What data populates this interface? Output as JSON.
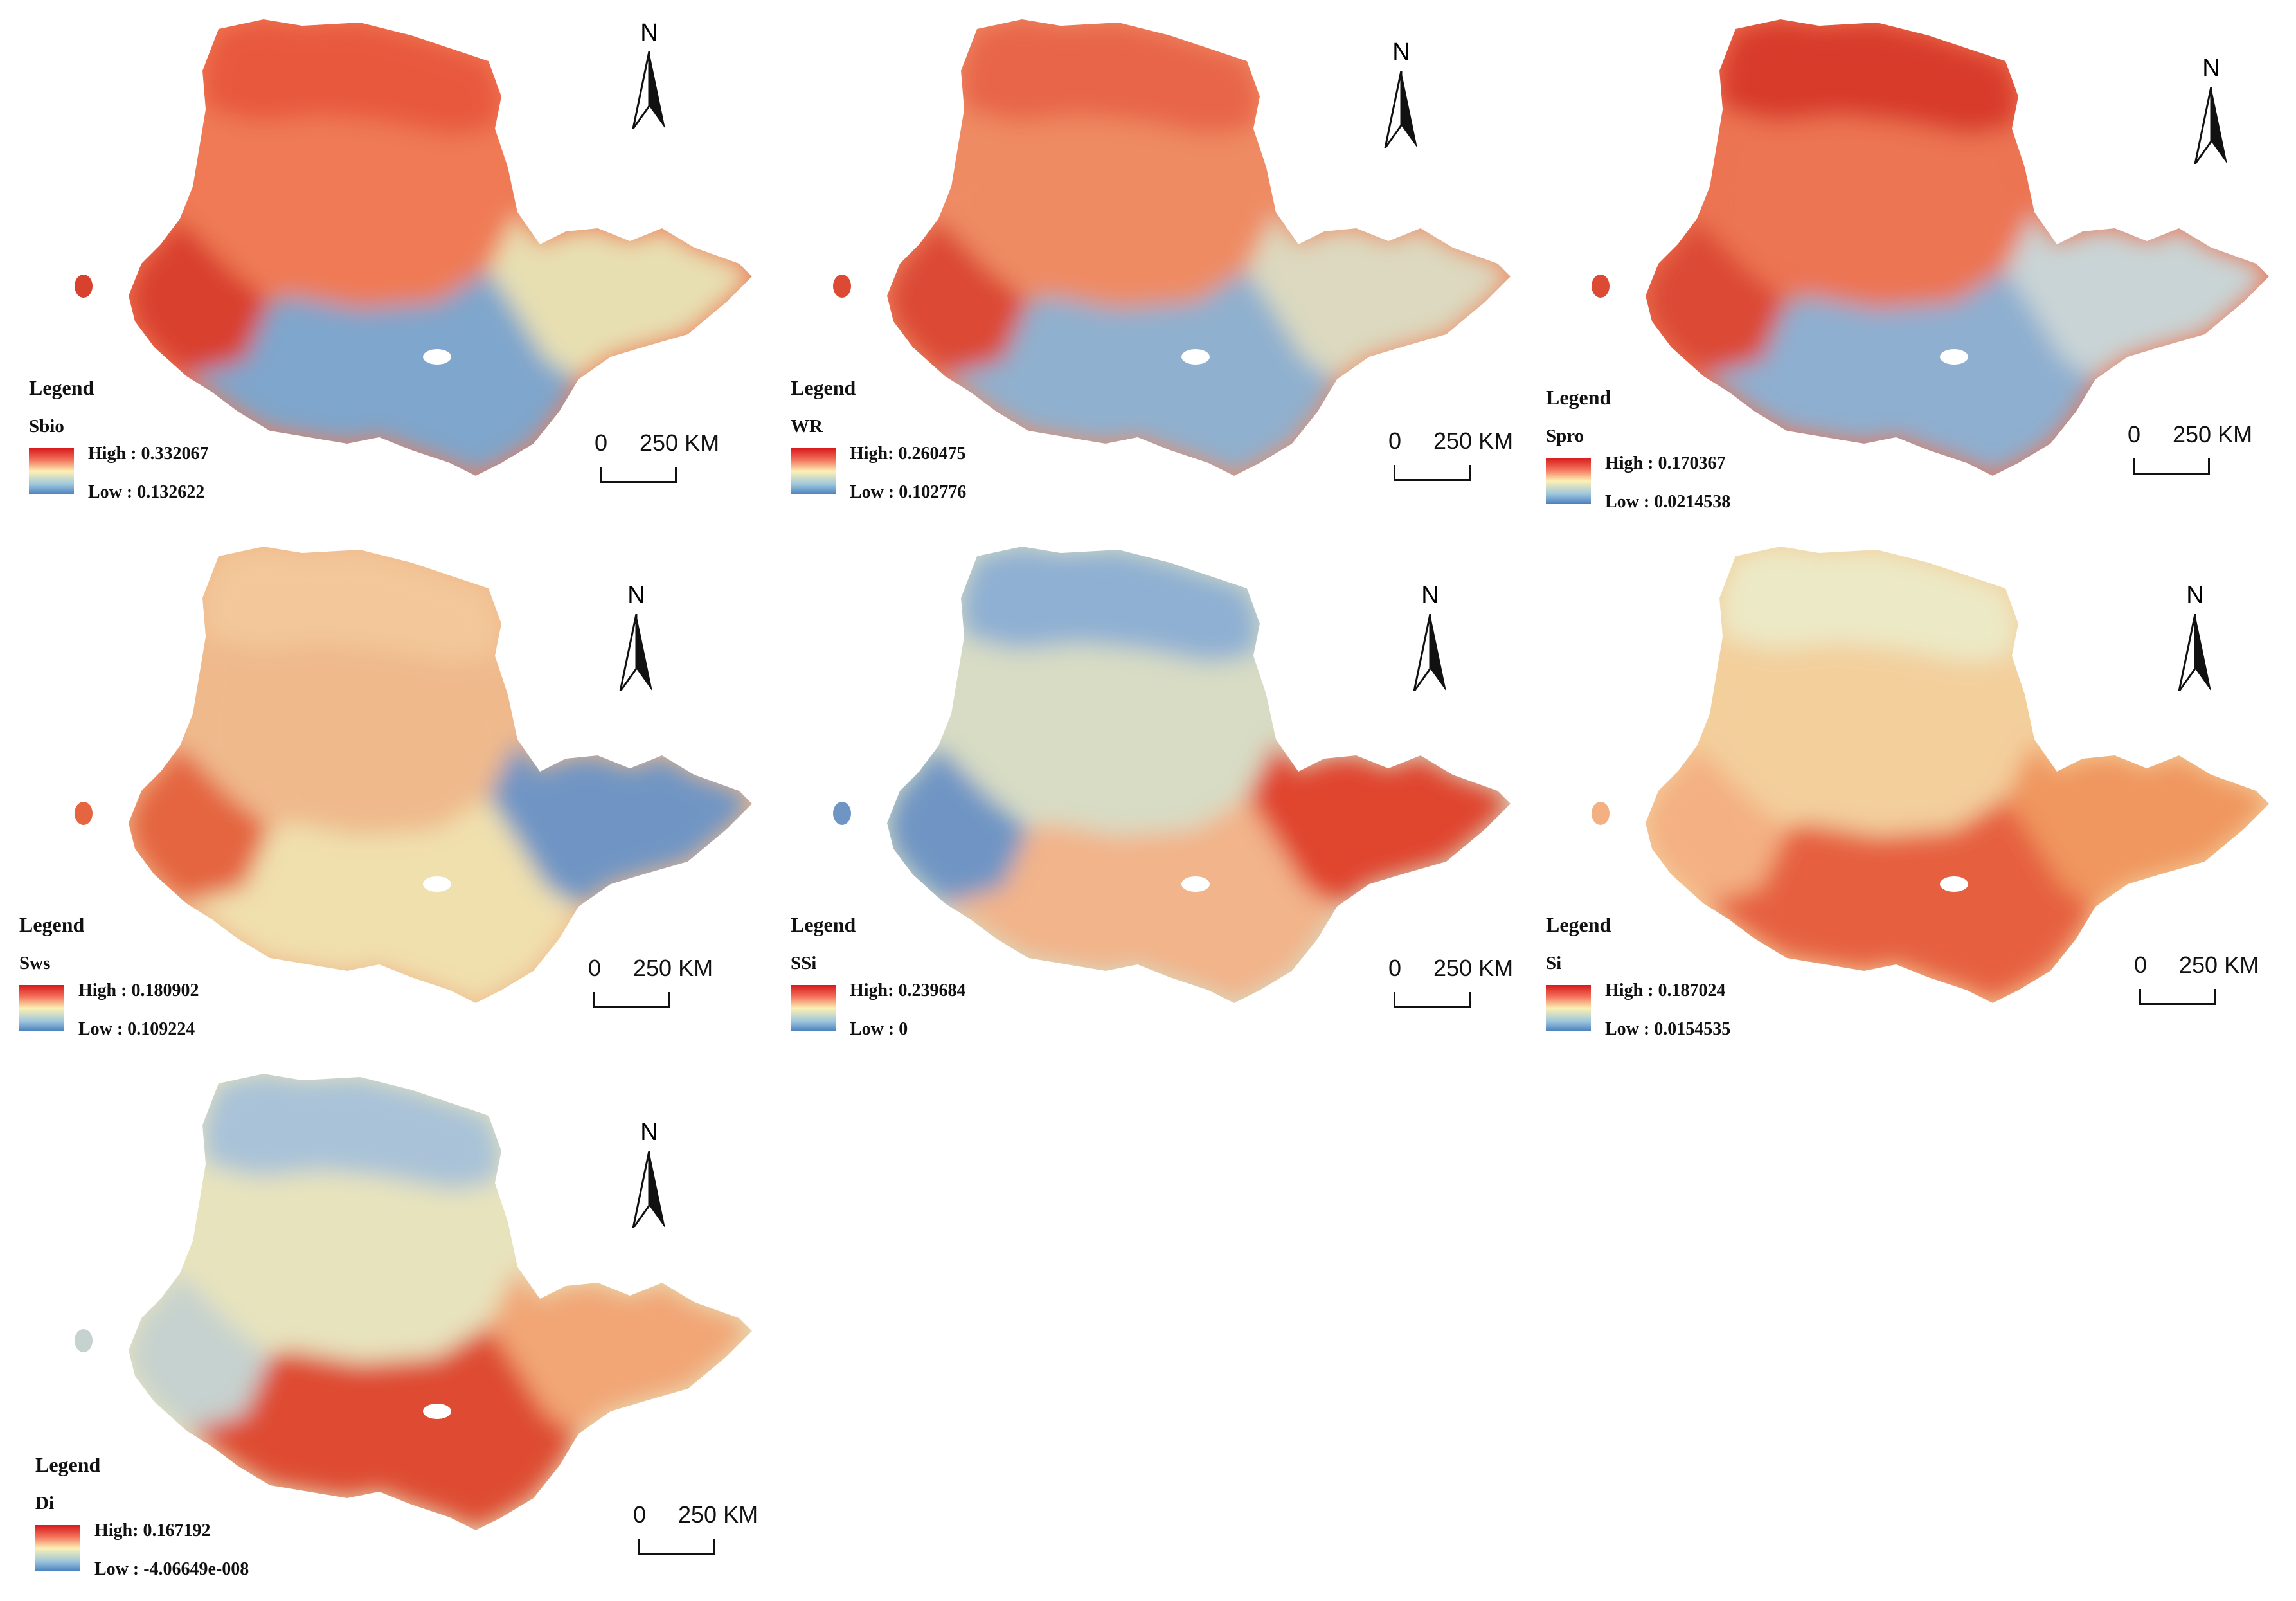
{
  "panels": [
    {
      "id": "sbio",
      "variable": "Sbio",
      "legend_title": "Legend",
      "high_text": "High : 0.332067",
      "low_text": "Low : 0.132622",
      "north": "N",
      "scale_zero": "0",
      "scale_label": "250 KM",
      "palette": {
        "north": "#e8593e",
        "center": "#ef7a55",
        "west": "#d9412f",
        "east": "#e7dfb2",
        "south": "#7fa6cc"
      }
    },
    {
      "id": "wr",
      "variable": "WR",
      "legend_title": "Legend",
      "high_text": "High: 0.260475",
      "low_text": "Low : 0.102776",
      "north": "N",
      "scale_zero": "0",
      "scale_label": "250 KM",
      "palette": {
        "north": "#e8654a",
        "center": "#ee8b64",
        "west": "#dc4a34",
        "east": "#dcd9c0",
        "south": "#8fb0cf"
      }
    },
    {
      "id": "spro",
      "variable": "Spro",
      "legend_title": "Legend",
      "high_text": "High : 0.170367",
      "low_text": "Low : 0.0214538",
      "north": "N",
      "scale_zero": "0",
      "scale_label": "250 KM",
      "palette": {
        "north": "#d83a2c",
        "center": "#ec7452",
        "west": "#dc4a34",
        "east": "#c9d4d6",
        "south": "#8eafd0"
      }
    },
    {
      "id": "sws",
      "variable": "Sws",
      "legend_title": "Legend",
      "high_text": "High : 0.180902",
      "low_text": "Low : 0.109224",
      "north": "N",
      "scale_zero": "0",
      "scale_label": "250 KM",
      "palette": {
        "north": "#f3c79a",
        "center": "#efb98c",
        "west": "#e4653f",
        "east": "#6f95c4",
        "south": "#f0e0ae"
      }
    },
    {
      "id": "ssi",
      "variable": "SSi",
      "legend_title": "Legend",
      "high_text": "High: 0.239684",
      "low_text": "Low : 0",
      "north": "N",
      "scale_zero": "0",
      "scale_label": "250 KM",
      "palette": {
        "north": "#8fb0d3",
        "center": "#d8dcc4",
        "west": "#6f95c4",
        "east": "#e0452f",
        "south": "#f2b48a"
      }
    },
    {
      "id": "si",
      "variable": "Si",
      "legend_title": "Legend",
      "high_text": "High : 0.187024",
      "low_text": "Low : 0.0154535",
      "north": "N",
      "scale_zero": "0",
      "scale_label": "250 KM",
      "palette": {
        "north": "#ece9c6",
        "center": "#f3cf9c",
        "west": "#f4b082",
        "east": "#f0965f",
        "south": "#e6603f"
      }
    },
    {
      "id": "di",
      "variable": "Di",
      "legend_title": "Legend",
      "high_text": "High: 0.167192",
      "low_text": "Low : -4.06649e-008",
      "north": "N",
      "scale_zero": "0",
      "scale_label": "250 KM",
      "palette": {
        "north": "#a9c2d8",
        "center": "#e7e3bd",
        "west": "#c6d2cf",
        "east": "#f2a676",
        "south": "#de4b33"
      }
    }
  ],
  "colors": {
    "legend_high": "#d7191c",
    "legend_mid": "#fdf0b4",
    "legend_low": "#4a7fbf",
    "land_cut": "#ffffff"
  }
}
